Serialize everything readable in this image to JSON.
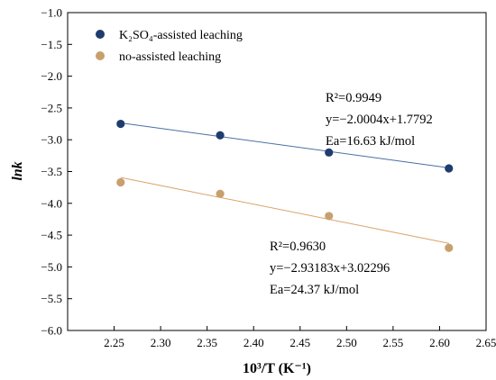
{
  "chart_data": {
    "type": "scatter",
    "xlabel": "10³/T (K⁻¹)",
    "ylabel": "lnk",
    "xlim": [
      2.2,
      2.65
    ],
    "ylim": [
      -6.0,
      -1.0
    ],
    "xticks": [
      "2.25",
      "2.30",
      "2.35",
      "2.40",
      "2.45",
      "2.50",
      "2.55",
      "2.60",
      "2.65"
    ],
    "yticks": [
      "-1.0",
      "-1.5",
      "-2.0",
      "-2.5",
      "-3.0",
      "-3.5",
      "-4.0",
      "-4.5",
      "-5.0",
      "-5.5",
      "-6.0"
    ],
    "grid": false,
    "legend_position": "top-left",
    "series": [
      {
        "name": "K₂SO₄-assisted leaching",
        "color": "#1f3c6e",
        "line_color": "#4a6fa5",
        "x": [
          2.257,
          2.364,
          2.481,
          2.61
        ],
        "y": [
          -2.75,
          -2.93,
          -3.2,
          -3.45
        ],
        "fit": {
          "slope": -2.0004,
          "intercept": 1.7792
        },
        "annotation": [
          "R²=0.9949",
          "y=−2.0004x+1.7792",
          "Ea=16.63 kJ/mol"
        ]
      },
      {
        "name": "no-assisted leaching",
        "color": "#c8a06e",
        "line_color": "#d9a46a",
        "x": [
          2.257,
          2.364,
          2.481,
          2.61
        ],
        "y": [
          -3.67,
          -3.85,
          -4.2,
          -4.7
        ],
        "fit": {
          "slope": -2.93183,
          "intercept": 3.02296
        },
        "annotation": [
          "R²=0.9630",
          "y=−2.93183x+3.02296",
          "Ea=24.37 kJ/mol"
        ]
      }
    ]
  }
}
